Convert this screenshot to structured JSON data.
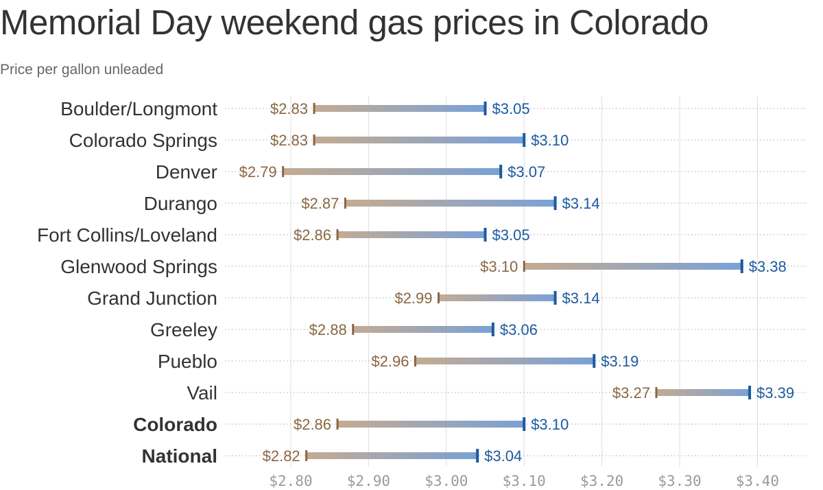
{
  "title": "Memorial Day weekend gas prices in Colorado",
  "subtitle": "Price per gallon unleaded",
  "colors": {
    "before": "#8a6642",
    "after": "#1c5aa0",
    "bar_start": "#c4ab92",
    "bar_end": "#7aa1d6",
    "grid": "#dddddd"
  },
  "chart_data": {
    "type": "dumbbell",
    "title": "Memorial Day weekend gas prices in Colorado",
    "subtitle": "Price per gallon unleaded",
    "xlim": [
      2.73,
      3.47
    ],
    "ticks": [
      2.8,
      2.9,
      3.0,
      3.1,
      3.2,
      3.3,
      3.4
    ],
    "tick_labels": [
      "$2.80",
      "$2.90",
      "$3.00",
      "$3.10",
      "$3.20",
      "$3.30",
      "$3.40"
    ],
    "grid": true,
    "rows": [
      {
        "category": "Boulder/Longmont",
        "start": 2.83,
        "end": 3.05,
        "start_label": "$2.83",
        "end_label": "$3.05",
        "bold": false
      },
      {
        "category": "Colorado Springs",
        "start": 2.83,
        "end": 3.1,
        "start_label": "$2.83",
        "end_label": "$3.10",
        "bold": false
      },
      {
        "category": "Denver",
        "start": 2.79,
        "end": 3.07,
        "start_label": "$2.79",
        "end_label": "$3.07",
        "bold": false
      },
      {
        "category": "Durango",
        "start": 2.87,
        "end": 3.14,
        "start_label": "$2.87",
        "end_label": "$3.14",
        "bold": false
      },
      {
        "category": "Fort Collins/Loveland",
        "start": 2.86,
        "end": 3.05,
        "start_label": "$2.86",
        "end_label": "$3.05",
        "bold": false
      },
      {
        "category": "Glenwood Springs",
        "start": 3.1,
        "end": 3.38,
        "start_label": "$3.10",
        "end_label": "$3.38",
        "bold": false
      },
      {
        "category": "Grand Junction",
        "start": 2.99,
        "end": 3.14,
        "start_label": "$2.99",
        "end_label": "$3.14",
        "bold": false
      },
      {
        "category": "Greeley",
        "start": 2.88,
        "end": 3.06,
        "start_label": "$2.88",
        "end_label": "$3.06",
        "bold": false
      },
      {
        "category": "Pueblo",
        "start": 2.96,
        "end": 3.19,
        "start_label": "$2.96",
        "end_label": "$3.19",
        "bold": false
      },
      {
        "category": "Vail",
        "start": 3.27,
        "end": 3.39,
        "start_label": "$3.27",
        "end_label": "$3.39",
        "bold": false
      },
      {
        "category": "Colorado",
        "start": 2.86,
        "end": 3.1,
        "start_label": "$2.86",
        "end_label": "$3.10",
        "bold": true
      },
      {
        "category": "National",
        "start": 2.82,
        "end": 3.04,
        "start_label": "$2.82",
        "end_label": "$3.04",
        "bold": true
      }
    ]
  }
}
